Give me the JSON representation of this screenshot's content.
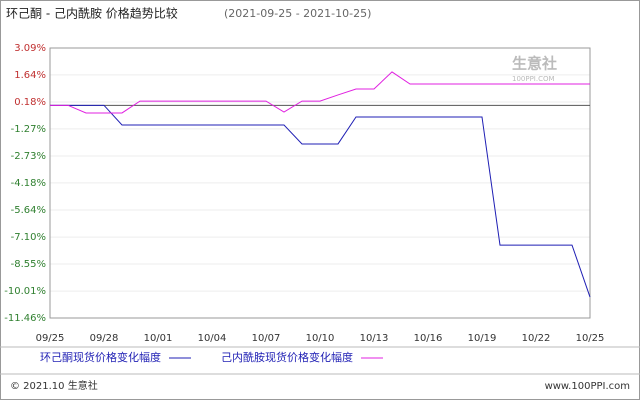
{
  "chart_data": {
    "type": "line",
    "title": "环己酮 - 己内酰胺 价格趋势比较",
    "subtitle": "(2021-09-25 - 2021-10-25)",
    "categories": [
      "09/25",
      null,
      null,
      "09/28",
      null,
      null,
      "10/01",
      null,
      null,
      "10/04",
      null,
      null,
      "10/07",
      null,
      null,
      "10/10",
      null,
      null,
      "10/13",
      null,
      null,
      "10/16",
      null,
      null,
      "10/19",
      null,
      null,
      "10/22",
      null,
      null,
      "10/25"
    ],
    "series": [
      {
        "name": "环己酮现货价格变化幅度",
        "color": "#1f1fb4",
        "values": [
          0,
          0,
          0,
          0,
          -1.06,
          -1.06,
          -1.06,
          -1.06,
          -1.06,
          -1.06,
          -1.06,
          -1.06,
          -1.06,
          -1.06,
          -2.08,
          -2.08,
          -2.08,
          -0.63,
          -0.63,
          -0.63,
          -0.63,
          -0.63,
          -0.63,
          -0.63,
          -0.63,
          -7.53,
          -7.53,
          -7.53,
          -7.53,
          -7.53,
          -10.33
        ]
      },
      {
        "name": "己内酰胺现货价格变化幅度",
        "color": "#e020e0",
        "values": [
          0,
          0,
          -0.41,
          -0.41,
          -0.41,
          0.23,
          0.23,
          0.23,
          0.23,
          0.23,
          0.23,
          0.23,
          0.23,
          -0.36,
          0.23,
          0.23,
          0.56,
          0.88,
          0.88,
          1.8,
          1.15,
          1.15,
          1.15,
          1.15,
          1.15,
          1.15,
          1.15,
          1.15,
          1.15,
          1.15,
          1.15
        ]
      }
    ],
    "ylim": [
      -11.46,
      3.09
    ],
    "yticks": [
      {
        "value": 3.09,
        "label": "3.09%"
      },
      {
        "value": 1.64,
        "label": "1.64%"
      },
      {
        "value": 0.18,
        "label": "0.18%"
      },
      {
        "value": -1.27,
        "label": "-1.27%"
      },
      {
        "value": -2.73,
        "label": "-2.73%"
      },
      {
        "value": -4.18,
        "label": "-4.18%"
      },
      {
        "value": -5.64,
        "label": "-5.64%"
      },
      {
        "value": -7.1,
        "label": "-7.10%"
      },
      {
        "value": -8.55,
        "label": "-8.55%"
      },
      {
        "value": -10.01,
        "label": "-10.01%"
      },
      {
        "value": -11.46,
        "label": "-11.46%"
      }
    ],
    "grid": true,
    "watermark": "生意社",
    "watermark_url": "100PPI.COM",
    "footer_left": "© 2021.10 生意社",
    "footer_right": "www.100PPI.com"
  }
}
